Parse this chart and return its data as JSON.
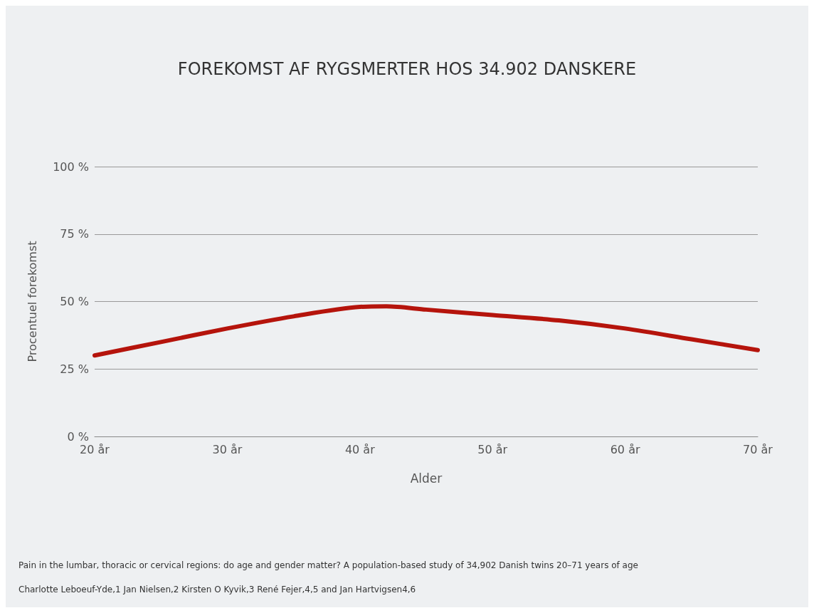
{
  "chart_data": {
    "type": "line",
    "title": "FOREKOMST AF RYGSMERTER HOS 34.902 DANSKERE",
    "xlabel": "Alder",
    "ylabel": "Procentuel forekomst",
    "x": [
      20,
      25,
      30,
      35,
      40,
      42,
      45,
      50,
      55,
      60,
      65,
      70
    ],
    "series": [
      {
        "color": "#b5140c",
        "values": [
          30,
          35,
          40,
          44.5,
          48,
          48.2,
          47,
          45,
          43,
          40,
          36,
          32
        ]
      }
    ],
    "xlim": [
      20,
      70
    ],
    "xticks": [
      {
        "value": 20,
        "label": "20 år"
      },
      {
        "value": 30,
        "label": "30 år"
      },
      {
        "value": 40,
        "label": "40 år"
      },
      {
        "value": 50,
        "label": "50 år"
      },
      {
        "value": 60,
        "label": "60 år"
      },
      {
        "value": 70,
        "label": "70 år"
      }
    ],
    "ylim": [
      0,
      100
    ],
    "yticks": [
      {
        "value": 0,
        "label": "0 %"
      },
      {
        "value": 25,
        "label": "25 %"
      },
      {
        "value": 50,
        "label": "50 %"
      },
      {
        "value": 75,
        "label": "75 %"
      },
      {
        "value": 100,
        "label": "100 %"
      }
    ],
    "grid": "y",
    "marker": "none",
    "line_style": "solid",
    "annotations": [
      "Pain in the lumbar, thoracic or cervical regions: do age and gender matter? A population-based study of 34,902 Danish twins 20–71 years of age",
      "Charlotte Leboeuf-Yde,1 Jan Nielsen,2 Kirsten O Kyvik,3 René Fejer,4,5 and Jan Hartvigsen4,6"
    ]
  }
}
